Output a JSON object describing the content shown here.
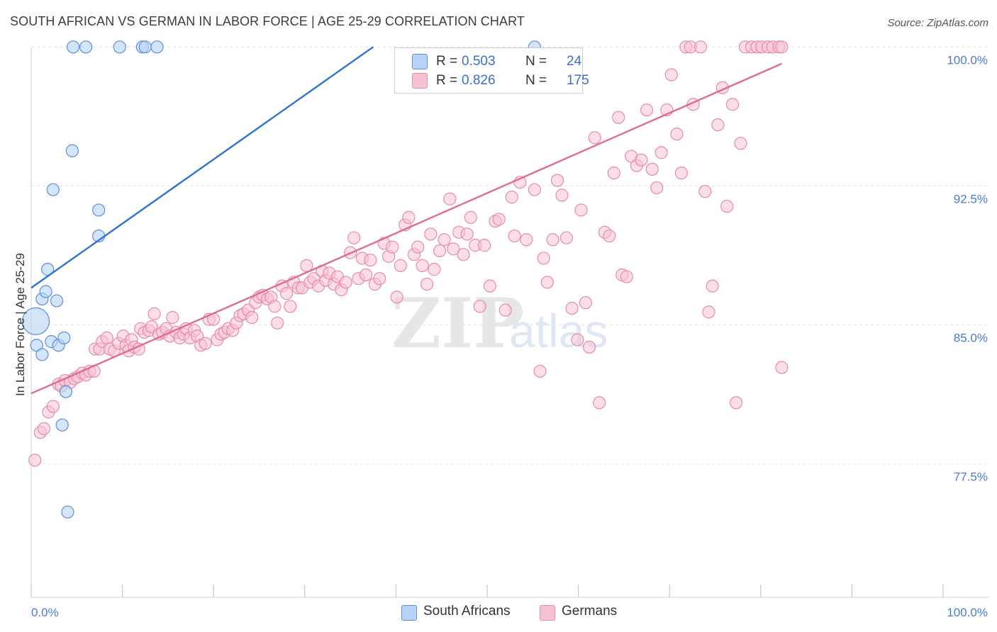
{
  "header": {
    "title": "SOUTH AFRICAN VS GERMAN IN LABOR FORCE | AGE 25-29 CORRELATION CHART",
    "source": "Source: ZipAtlas.com"
  },
  "legend": {
    "rows": [
      {
        "r_label": "R =",
        "r_value": "0.503",
        "n_label": "N =",
        "n_value": "24"
      },
      {
        "r_label": "R =",
        "r_value": "0.826",
        "n_label": "N =",
        "n_value": "175"
      }
    ]
  },
  "bottom_legend": [
    "South Africans",
    "Germans"
  ],
  "watermark": {
    "zip": "ZIP",
    "atlas": "atlas"
  },
  "colors": {
    "south_african_fill": "#b8d3f5",
    "south_african_stroke": "#5b8fd6",
    "south_african_line": "#2d74cc",
    "german_fill": "#f7c3d4",
    "german_stroke": "#e68aab",
    "german_line": "#e06a96",
    "tick_text": "#4a7bd0",
    "grid": "#e3e3e3"
  },
  "chart_data": {
    "type": "scatter",
    "title": "SOUTH AFRICAN VS GERMAN IN LABOR FORCE | AGE 25-29 CORRELATION CHART",
    "xlabel": "",
    "ylabel": "In Labor Force | Age 25-29",
    "xlim": [
      0,
      100
    ],
    "ylim": [
      70.3,
      100.7
    ],
    "x_tick_labels": [
      "0.0%",
      "100.0%"
    ],
    "y_ticks": [
      {
        "value": 100.0,
        "label": "100.0%"
      },
      {
        "value": 92.5,
        "label": "92.5%"
      },
      {
        "value": 85.0,
        "label": "85.0%"
      },
      {
        "value": 77.5,
        "label": "77.5%"
      }
    ],
    "grid": true,
    "series": [
      {
        "name": "South Africans",
        "R": 0.503,
        "N": 24,
        "trend": {
          "x": [
            0,
            37.5
          ],
          "y": [
            87.0,
            100.0
          ]
        },
        "points": [
          {
            "x": 0.5,
            "y": 85.2,
            "big": true
          },
          {
            "x": 0.6,
            "y": 83.9
          },
          {
            "x": 1.2,
            "y": 83.4
          },
          {
            "x": 1.2,
            "y": 86.4
          },
          {
            "x": 1.6,
            "y": 86.8
          },
          {
            "x": 1.8,
            "y": 88.0
          },
          {
            "x": 2.2,
            "y": 84.1
          },
          {
            "x": 2.4,
            "y": 92.3
          },
          {
            "x": 2.8,
            "y": 86.3
          },
          {
            "x": 3.0,
            "y": 83.9
          },
          {
            "x": 3.4,
            "y": 79.6
          },
          {
            "x": 3.6,
            "y": 84.3
          },
          {
            "x": 3.8,
            "y": 81.4
          },
          {
            "x": 4.0,
            "y": 74.9
          },
          {
            "x": 4.5,
            "y": 94.4
          },
          {
            "x": 4.6,
            "y": 100.0
          },
          {
            "x": 6.0,
            "y": 100.0
          },
          {
            "x": 7.4,
            "y": 91.2
          },
          {
            "x": 7.4,
            "y": 89.8
          },
          {
            "x": 9.7,
            "y": 100.0
          },
          {
            "x": 12.2,
            "y": 100.0
          },
          {
            "x": 12.5,
            "y": 100.0
          },
          {
            "x": 13.8,
            "y": 100.0
          },
          {
            "x": 55.2,
            "y": 100.0
          }
        ]
      },
      {
        "name": "Germans",
        "R": 0.826,
        "N": 175,
        "trend": {
          "x": [
            0,
            82.3
          ],
          "y": [
            81.3,
            99.1
          ]
        },
        "points": [
          {
            "x": 0.4,
            "y": 77.7
          },
          {
            "x": 1.0,
            "y": 79.2
          },
          {
            "x": 1.4,
            "y": 79.4
          },
          {
            "x": 1.9,
            "y": 80.3
          },
          {
            "x": 2.4,
            "y": 80.6
          },
          {
            "x": 3.0,
            "y": 81.8
          },
          {
            "x": 3.3,
            "y": 81.7
          },
          {
            "x": 3.7,
            "y": 82.0
          },
          {
            "x": 4.3,
            "y": 81.9
          },
          {
            "x": 4.7,
            "y": 82.1
          },
          {
            "x": 5.1,
            "y": 82.2
          },
          {
            "x": 5.6,
            "y": 82.4
          },
          {
            "x": 6.0,
            "y": 82.3
          },
          {
            "x": 6.4,
            "y": 82.5
          },
          {
            "x": 6.9,
            "y": 82.5
          },
          {
            "x": 7.0,
            "y": 83.7
          },
          {
            "x": 7.5,
            "y": 83.7
          },
          {
            "x": 7.8,
            "y": 84.1
          },
          {
            "x": 8.3,
            "y": 84.3
          },
          {
            "x": 8.6,
            "y": 83.7
          },
          {
            "x": 9.1,
            "y": 83.6
          },
          {
            "x": 9.6,
            "y": 84.0
          },
          {
            "x": 10.1,
            "y": 84.4
          },
          {
            "x": 10.4,
            "y": 83.9
          },
          {
            "x": 10.7,
            "y": 83.6
          },
          {
            "x": 11.0,
            "y": 84.2
          },
          {
            "x": 11.3,
            "y": 83.8
          },
          {
            "x": 11.8,
            "y": 83.7
          },
          {
            "x": 12.0,
            "y": 84.8
          },
          {
            "x": 12.4,
            "y": 84.6
          },
          {
            "x": 12.9,
            "y": 84.7
          },
          {
            "x": 13.2,
            "y": 84.9
          },
          {
            "x": 13.5,
            "y": 85.6
          },
          {
            "x": 14.0,
            "y": 84.5
          },
          {
            "x": 14.4,
            "y": 84.6
          },
          {
            "x": 14.8,
            "y": 84.8
          },
          {
            "x": 15.2,
            "y": 84.4
          },
          {
            "x": 15.5,
            "y": 85.4
          },
          {
            "x": 15.9,
            "y": 84.6
          },
          {
            "x": 16.3,
            "y": 84.3
          },
          {
            "x": 16.7,
            "y": 84.5
          },
          {
            "x": 17.0,
            "y": 84.8
          },
          {
            "x": 17.4,
            "y": 84.3
          },
          {
            "x": 17.9,
            "y": 84.7
          },
          {
            "x": 18.2,
            "y": 84.4
          },
          {
            "x": 18.6,
            "y": 83.9
          },
          {
            "x": 19.1,
            "y": 84.0
          },
          {
            "x": 19.5,
            "y": 85.3
          },
          {
            "x": 20.0,
            "y": 85.3
          },
          {
            "x": 20.4,
            "y": 84.2
          },
          {
            "x": 20.8,
            "y": 84.5
          },
          {
            "x": 21.2,
            "y": 84.6
          },
          {
            "x": 21.6,
            "y": 84.8
          },
          {
            "x": 22.1,
            "y": 84.7
          },
          {
            "x": 22.5,
            "y": 85.1
          },
          {
            "x": 22.9,
            "y": 85.5
          },
          {
            "x": 23.3,
            "y": 85.6
          },
          {
            "x": 23.8,
            "y": 85.8
          },
          {
            "x": 24.2,
            "y": 85.4
          },
          {
            "x": 24.6,
            "y": 86.2
          },
          {
            "x": 25.0,
            "y": 86.5
          },
          {
            "x": 25.4,
            "y": 86.6
          },
          {
            "x": 25.9,
            "y": 86.4
          },
          {
            "x": 26.3,
            "y": 86.5
          },
          {
            "x": 26.7,
            "y": 86.0
          },
          {
            "x": 27.0,
            "y": 85.1
          },
          {
            "x": 27.5,
            "y": 87.1
          },
          {
            "x": 28.0,
            "y": 86.7
          },
          {
            "x": 28.4,
            "y": 86.0
          },
          {
            "x": 28.8,
            "y": 87.3
          },
          {
            "x": 29.3,
            "y": 87.0
          },
          {
            "x": 29.7,
            "y": 87.0
          },
          {
            "x": 30.2,
            "y": 88.2
          },
          {
            "x": 30.6,
            "y": 87.3
          },
          {
            "x": 31.0,
            "y": 87.5
          },
          {
            "x": 31.5,
            "y": 87.1
          },
          {
            "x": 31.9,
            "y": 87.9
          },
          {
            "x": 32.3,
            "y": 87.4
          },
          {
            "x": 32.7,
            "y": 87.8
          },
          {
            "x": 33.2,
            "y": 87.2
          },
          {
            "x": 33.6,
            "y": 87.6
          },
          {
            "x": 34.0,
            "y": 86.9
          },
          {
            "x": 34.5,
            "y": 87.3
          },
          {
            "x": 35.0,
            "y": 88.9
          },
          {
            "x": 35.4,
            "y": 89.7
          },
          {
            "x": 35.9,
            "y": 87.5
          },
          {
            "x": 36.3,
            "y": 88.6
          },
          {
            "x": 36.7,
            "y": 87.7
          },
          {
            "x": 37.2,
            "y": 88.5
          },
          {
            "x": 37.7,
            "y": 87.2
          },
          {
            "x": 38.2,
            "y": 87.5
          },
          {
            "x": 38.7,
            "y": 89.4
          },
          {
            "x": 39.2,
            "y": 88.7
          },
          {
            "x": 39.6,
            "y": 89.2
          },
          {
            "x": 40.1,
            "y": 86.5
          },
          {
            "x": 40.5,
            "y": 88.2
          },
          {
            "x": 41.0,
            "y": 90.4
          },
          {
            "x": 41.4,
            "y": 90.8
          },
          {
            "x": 42.0,
            "y": 88.8
          },
          {
            "x": 42.4,
            "y": 89.2
          },
          {
            "x": 42.9,
            "y": 88.2
          },
          {
            "x": 43.4,
            "y": 87.2
          },
          {
            "x": 43.8,
            "y": 89.9
          },
          {
            "x": 44.2,
            "y": 88.0
          },
          {
            "x": 44.8,
            "y": 89.0
          },
          {
            "x": 45.3,
            "y": 89.6
          },
          {
            "x": 45.9,
            "y": 91.8
          },
          {
            "x": 46.3,
            "y": 89.1
          },
          {
            "x": 46.9,
            "y": 90.0
          },
          {
            "x": 47.4,
            "y": 88.8
          },
          {
            "x": 47.8,
            "y": 89.9
          },
          {
            "x": 48.2,
            "y": 90.8
          },
          {
            "x": 48.7,
            "y": 89.3
          },
          {
            "x": 49.2,
            "y": 86.0
          },
          {
            "x": 49.7,
            "y": 89.3
          },
          {
            "x": 50.3,
            "y": 87.1
          },
          {
            "x": 50.9,
            "y": 90.6
          },
          {
            "x": 51.3,
            "y": 90.7
          },
          {
            "x": 52.0,
            "y": 85.8
          },
          {
            "x": 52.7,
            "y": 91.9
          },
          {
            "x": 53.0,
            "y": 89.8
          },
          {
            "x": 53.6,
            "y": 92.7
          },
          {
            "x": 54.3,
            "y": 89.6
          },
          {
            "x": 55.2,
            "y": 92.3
          },
          {
            "x": 55.8,
            "y": 82.5
          },
          {
            "x": 56.2,
            "y": 88.6
          },
          {
            "x": 56.6,
            "y": 87.3
          },
          {
            "x": 57.2,
            "y": 89.6
          },
          {
            "x": 57.7,
            "y": 92.8
          },
          {
            "x": 58.2,
            "y": 92.0
          },
          {
            "x": 58.7,
            "y": 89.7
          },
          {
            "x": 59.3,
            "y": 85.9
          },
          {
            "x": 59.9,
            "y": 84.2
          },
          {
            "x": 60.3,
            "y": 91.2
          },
          {
            "x": 60.8,
            "y": 86.2
          },
          {
            "x": 61.2,
            "y": 83.8
          },
          {
            "x": 61.8,
            "y": 95.1
          },
          {
            "x": 62.3,
            "y": 80.8
          },
          {
            "x": 62.9,
            "y": 90.0
          },
          {
            "x": 63.4,
            "y": 89.8
          },
          {
            "x": 63.9,
            "y": 93.2
          },
          {
            "x": 64.4,
            "y": 96.2
          },
          {
            "x": 64.8,
            "y": 87.7
          },
          {
            "x": 65.3,
            "y": 87.6
          },
          {
            "x": 65.8,
            "y": 94.1
          },
          {
            "x": 66.4,
            "y": 93.6
          },
          {
            "x": 66.9,
            "y": 93.9
          },
          {
            "x": 67.5,
            "y": 96.6
          },
          {
            "x": 68.1,
            "y": 93.4
          },
          {
            "x": 68.6,
            "y": 92.4
          },
          {
            "x": 69.1,
            "y": 94.3
          },
          {
            "x": 69.7,
            "y": 96.6
          },
          {
            "x": 70.2,
            "y": 98.5
          },
          {
            "x": 70.8,
            "y": 95.3
          },
          {
            "x": 71.3,
            "y": 93.2
          },
          {
            "x": 71.8,
            "y": 100.0
          },
          {
            "x": 72.3,
            "y": 100.0
          },
          {
            "x": 72.6,
            "y": 96.9
          },
          {
            "x": 73.4,
            "y": 100.0
          },
          {
            "x": 73.9,
            "y": 92.2
          },
          {
            "x": 74.3,
            "y": 85.7
          },
          {
            "x": 74.7,
            "y": 87.1
          },
          {
            "x": 75.3,
            "y": 95.8
          },
          {
            "x": 75.8,
            "y": 97.8
          },
          {
            "x": 76.3,
            "y": 91.4
          },
          {
            "x": 76.9,
            "y": 96.9
          },
          {
            "x": 77.3,
            "y": 80.8
          },
          {
            "x": 77.8,
            "y": 94.8
          },
          {
            "x": 78.3,
            "y": 100.0
          },
          {
            "x": 79.0,
            "y": 100.0
          },
          {
            "x": 79.6,
            "y": 100.0
          },
          {
            "x": 80.1,
            "y": 100.0
          },
          {
            "x": 80.8,
            "y": 100.0
          },
          {
            "x": 81.3,
            "y": 100.0
          },
          {
            "x": 82.0,
            "y": 100.0
          },
          {
            "x": 82.3,
            "y": 82.7
          },
          {
            "x": 82.3,
            "y": 100.0
          }
        ]
      }
    ]
  }
}
